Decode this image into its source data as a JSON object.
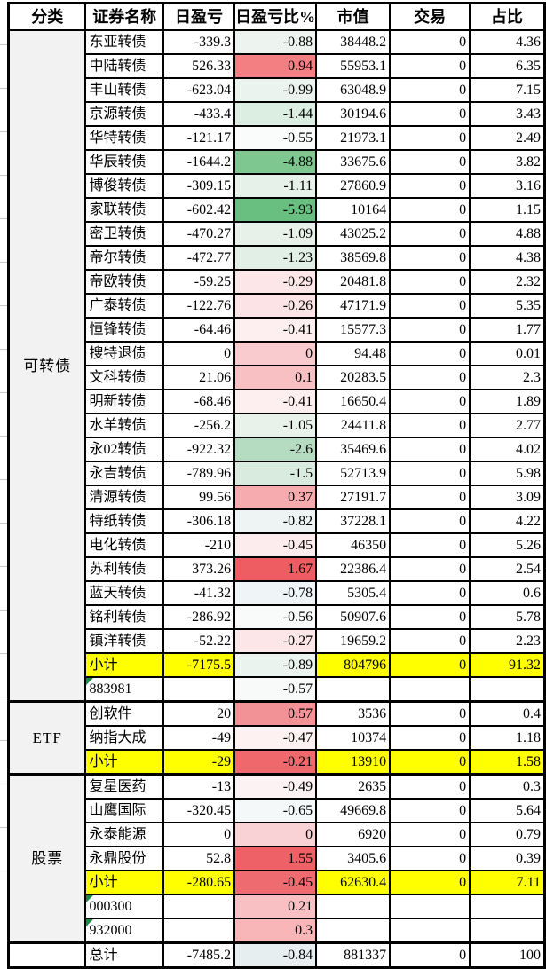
{
  "columns": [
    {
      "label": "分类"
    },
    {
      "label": "证券名称"
    },
    {
      "label": "日盈亏"
    },
    {
      "label": "日盈亏比%"
    },
    {
      "label": "市值"
    },
    {
      "label": "交易"
    },
    {
      "label": "占比"
    }
  ],
  "colors": {
    "subtotal_bg": "#ffff00",
    "category_bg": "#f2f2f2",
    "grid_border": "#000000",
    "stored_as_text_flag": "#1e8a44"
  },
  "groups": [
    {
      "category": "可转债",
      "rows": [
        {
          "name": "东亚转债",
          "pl": "-339.3",
          "pct": "-0.88",
          "pct_bg": "#edf4ef",
          "mv": "38448.2",
          "trade": "0",
          "share": "4.36"
        },
        {
          "name": "中陆转债",
          "pl": "526.33",
          "pct": "0.94",
          "pct_bg": "#f37f83",
          "mv": "55953.1",
          "trade": "0",
          "share": "6.35"
        },
        {
          "name": "丰山转债",
          "pl": "-623.04",
          "pct": "-0.99",
          "pct_bg": "#eaf3ed",
          "mv": "63048.9",
          "trade": "0",
          "share": "7.15"
        },
        {
          "name": "京源转债",
          "pl": "-433.4",
          "pct": "-1.44",
          "pct_bg": "#dcede2",
          "mv": "30194.6",
          "trade": "0",
          "share": "3.43"
        },
        {
          "name": "华特转债",
          "pl": "-121.17",
          "pct": "-0.55",
          "pct_bg": "#f9fcfa",
          "mv": "21973.1",
          "trade": "0",
          "share": "2.49"
        },
        {
          "name": "华辰转债",
          "pl": "-1644.2",
          "pct": "-4.88",
          "pct_bg": "#7fc791",
          "mv": "33675.6",
          "trade": "0",
          "share": "3.82"
        },
        {
          "name": "博俊转债",
          "pl": "-309.15",
          "pct": "-1.11",
          "pct_bg": "#e6f1ea",
          "mv": "27860.9",
          "trade": "0",
          "share": "3.16"
        },
        {
          "name": "家联转债",
          "pl": "-602.42",
          "pct": "-5.93",
          "pct_bg": "#68bf80",
          "mv": "10164",
          "trade": "0",
          "share": "1.15"
        },
        {
          "name": "密卫转债",
          "pl": "-470.27",
          "pct": "-1.09",
          "pct_bg": "#e7f1ea",
          "mv": "43025.2",
          "trade": "0",
          "share": "4.88"
        },
        {
          "name": "帝尔转债",
          "pl": "-472.77",
          "pct": "-1.23",
          "pct_bg": "#e2efe6",
          "mv": "38569.8",
          "trade": "0",
          "share": "4.38"
        },
        {
          "name": "帝欧转债",
          "pl": "-59.25",
          "pct": "-0.29",
          "pct_bg": "#fce6e7",
          "mv": "20481.8",
          "trade": "0",
          "share": "2.32"
        },
        {
          "name": "广泰转债",
          "pl": "-122.76",
          "pct": "-0.26",
          "pct_bg": "#fce4e6",
          "mv": "47171.9",
          "trade": "0",
          "share": "5.35"
        },
        {
          "name": "恒锋转债",
          "pl": "-64.46",
          "pct": "-0.41",
          "pct_bg": "#fdeff0",
          "mv": "15577.3",
          "trade": "0",
          "share": "1.77"
        },
        {
          "name": "搜特退债",
          "pl": "0",
          "pct": "0",
          "pct_bg": "#f9cbce",
          "mv": "94.48",
          "trade": "0",
          "share": "0.01"
        },
        {
          "name": "文科转债",
          "pl": "21.06",
          "pct": "0.1",
          "pct_bg": "#f8c0c3",
          "mv": "20283.5",
          "trade": "0",
          "share": "2.3"
        },
        {
          "name": "明新转债",
          "pl": "-68.46",
          "pct": "-0.41",
          "pct_bg": "#fdeff0",
          "mv": "16650.4",
          "trade": "0",
          "share": "1.89"
        },
        {
          "name": "水羊转债",
          "pl": "-256.2",
          "pct": "-1.05",
          "pct_bg": "#e8f2eb",
          "mv": "24411.8",
          "trade": "0",
          "share": "2.77"
        },
        {
          "name": "永02转债",
          "pl": "-922.32",
          "pct": "-2.6",
          "pct_bg": "#b5dbc1",
          "mv": "35469.6",
          "trade": "0",
          "share": "4.02"
        },
        {
          "name": "永吉转债",
          "pl": "-789.96",
          "pct": "-1.5",
          "pct_bg": "#d8ebde",
          "mv": "52713.9",
          "trade": "0",
          "share": "5.98"
        },
        {
          "name": "清源转债",
          "pl": "99.56",
          "pct": "0.37",
          "pct_bg": "#f6abaf",
          "mv": "27191.7",
          "trade": "0",
          "share": "3.09"
        },
        {
          "name": "特纸转债",
          "pl": "-306.18",
          "pct": "-0.82",
          "pct_bg": "#eef4f4",
          "mv": "37228.1",
          "trade": "0",
          "share": "4.22"
        },
        {
          "name": "电化转债",
          "pl": "-210",
          "pct": "-0.45",
          "pct_bg": "#fcecee",
          "mv": "46350",
          "trade": "0",
          "share": "5.26"
        },
        {
          "name": "苏利转债",
          "pl": "373.26",
          "pct": "1.67",
          "pct_bg": "#ee5d62",
          "mv": "22386.4",
          "trade": "0",
          "share": "2.54"
        },
        {
          "name": "蓝天转债",
          "pl": "-41.32",
          "pct": "-0.78",
          "pct_bg": "#eff5f6",
          "mv": "5305.4",
          "trade": "0",
          "share": "0.6"
        },
        {
          "name": "铭利转债",
          "pl": "-286.92",
          "pct": "-0.56",
          "pct_bg": "#f9fbfa",
          "mv": "50907.6",
          "trade": "0",
          "share": "5.78"
        },
        {
          "name": "镇洋转债",
          "pl": "-52.22",
          "pct": "-0.27",
          "pct_bg": "#fce6e7",
          "mv": "19659.2",
          "trade": "0",
          "share": "2.23"
        },
        {
          "name": "小计",
          "type": "subtotal",
          "pl": "-7175.5",
          "pct": "-0.89",
          "pct_bg": "#ebf3ee",
          "mv": "804796",
          "trade": "0",
          "share": "91.32"
        },
        {
          "name": "883981",
          "type": "index",
          "flag": true,
          "pl": "",
          "pct": "-0.57",
          "pct_bg": "#f7faf8",
          "mv": "",
          "trade": "",
          "share": ""
        }
      ]
    },
    {
      "category": "ETF",
      "rows": [
        {
          "name": "创软件",
          "pl": "20",
          "pct": "0.57",
          "pct_bg": "#f29296",
          "mv": "3536",
          "trade": "0",
          "share": "0.4"
        },
        {
          "name": "纳指大成",
          "pl": "-49",
          "pct": "-0.47",
          "pct_bg": "#fdf1f2",
          "mv": "10374",
          "trade": "0",
          "share": "1.18"
        },
        {
          "name": "小计",
          "type": "subtotal",
          "pl": "-29",
          "pct": "-0.21",
          "pct_bg": "#ee686c",
          "mv": "13910",
          "trade": "0",
          "share": "1.58"
        }
      ]
    },
    {
      "category": "股票",
      "rows": [
        {
          "name": "复星医药",
          "pl": "-13",
          "pct": "-0.49",
          "pct_bg": "#fdf2f3",
          "mv": "2635",
          "trade": "0",
          "share": "0.3"
        },
        {
          "name": "山鹰国际",
          "pl": "-320.45",
          "pct": "-0.65",
          "pct_bg": "#f4f8f9",
          "mv": "49669.8",
          "trade": "0",
          "share": "5.64"
        },
        {
          "name": "永泰能源",
          "pl": "0",
          "pct": "0",
          "pct_bg": "#f8d2d5",
          "mv": "6920",
          "trade": "0",
          "share": "0.79"
        },
        {
          "name": "永鼎股份",
          "pl": "52.8",
          "pct": "1.55",
          "pct_bg": "#ee6166",
          "mv": "3405.6",
          "trade": "0",
          "share": "0.39"
        },
        {
          "name": "小计",
          "type": "subtotal",
          "pl": "-280.65",
          "pct": "-0.45",
          "pct_bg": "#ee6b6f",
          "mv": "62630.4",
          "trade": "0",
          "share": "7.11"
        },
        {
          "name": "000300",
          "type": "index",
          "flag": true,
          "pl": "",
          "pct": "0.21",
          "pct_bg": "#f9c0c3",
          "mv": "",
          "trade": "",
          "share": ""
        },
        {
          "name": "932000",
          "type": "index",
          "flag": true,
          "pl": "",
          "pct": "0.3",
          "pct_bg": "#f8b6b9",
          "mv": "",
          "trade": "",
          "share": ""
        }
      ]
    },
    {
      "category": "",
      "rows": [
        {
          "name": "总计",
          "type": "total",
          "pl": "-7485.2",
          "pct": "-0.84",
          "pct_bg": "#e7eef0",
          "mv": "881337",
          "trade": "0",
          "share": "100"
        }
      ]
    }
  ]
}
